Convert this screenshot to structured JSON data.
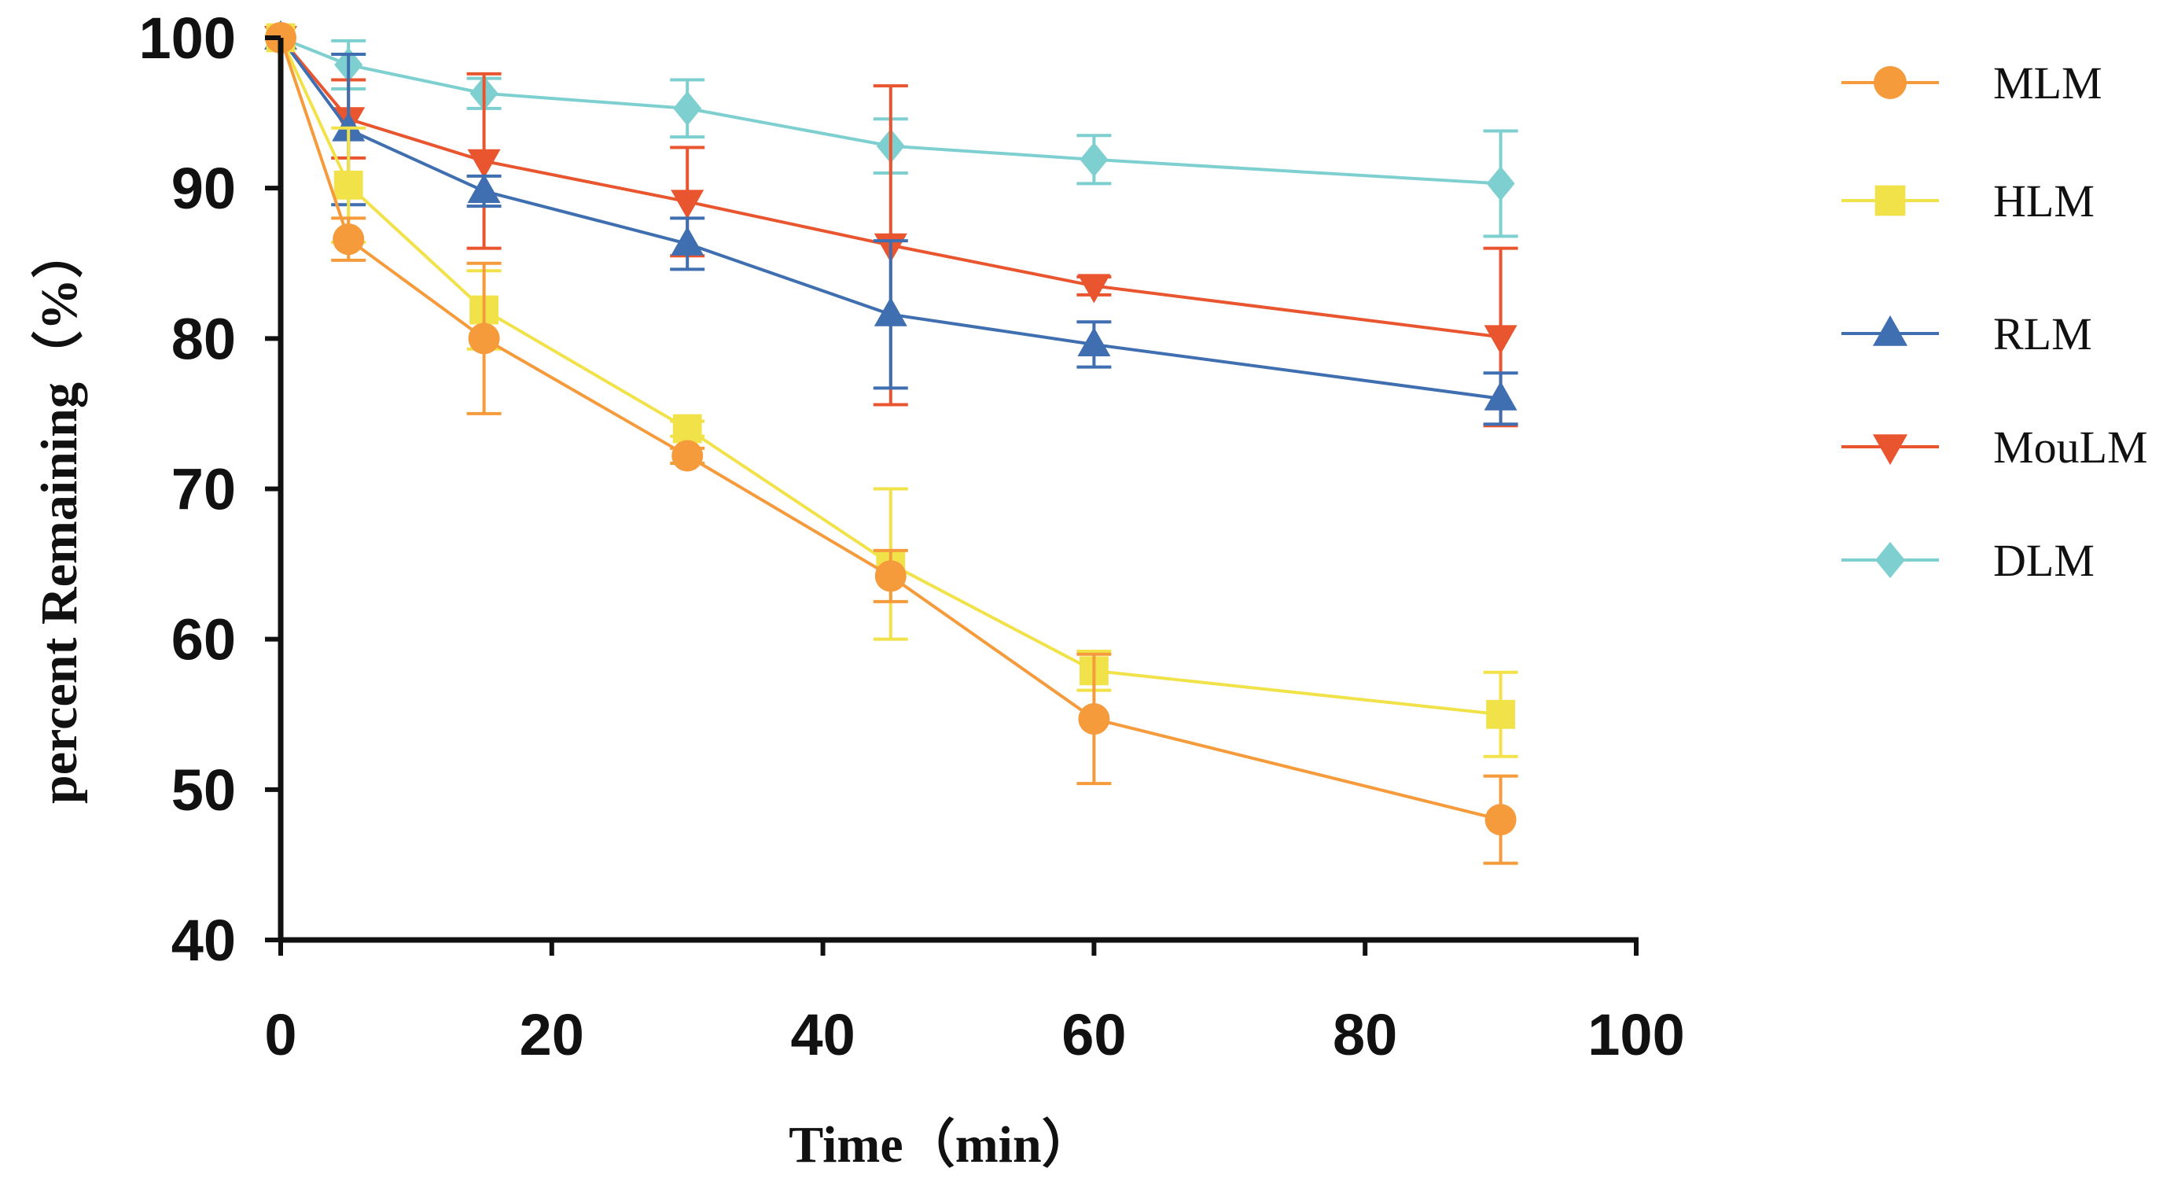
{
  "chart_data": {
    "type": "line",
    "title": "",
    "xlabel": "Time（min）",
    "ylabel": "percent Remaining（%）",
    "xlim": [
      0,
      100
    ],
    "ylim": [
      40,
      100
    ],
    "xticks": [
      0,
      20,
      40,
      60,
      80,
      100
    ],
    "yticks": [
      40,
      50,
      60,
      70,
      80,
      90,
      100
    ],
    "grid": false,
    "legend_position": "right",
    "x": [
      0,
      5,
      15,
      30,
      45,
      60,
      90
    ],
    "series": [
      {
        "name": "DLM",
        "color": "#7ecfd0",
        "marker": "diamond",
        "values": [
          100,
          98.2,
          96.3,
          95.3,
          92.8,
          91.9,
          90.3
        ],
        "errors": [
          0,
          1.6,
          1.0,
          1.9,
          1.8,
          1.6,
          3.5
        ]
      },
      {
        "name": "MouLM",
        "color": "#e8552f",
        "marker": "triangle-down",
        "values": [
          100,
          94.6,
          91.8,
          89.1,
          86.2,
          83.5,
          80.1
        ],
        "errors": [
          0,
          2.6,
          5.8,
          3.6,
          10.6,
          0.6,
          5.9
        ]
      },
      {
        "name": "RLM",
        "color": "#3f6fb0",
        "marker": "triangle-up",
        "values": [
          100,
          93.9,
          89.8,
          86.3,
          81.6,
          79.6,
          76.0
        ],
        "errors": [
          0,
          5.0,
          1.0,
          1.7,
          4.9,
          1.5,
          1.7
        ]
      },
      {
        "name": "HLM",
        "color": "#f2e24a",
        "marker": "square",
        "values": [
          100,
          90.2,
          81.9,
          74.0,
          65.0,
          57.9,
          55.0
        ],
        "errors": [
          0,
          3.8,
          2.6,
          0.5,
          5.0,
          1.3,
          2.8
        ]
      },
      {
        "name": "MLM",
        "color": "#f59b3c",
        "marker": "circle",
        "values": [
          100,
          86.6,
          80.0,
          72.2,
          64.2,
          54.7,
          48.0
        ],
        "errors": [
          0,
          1.4,
          5.0,
          0.5,
          1.7,
          4.3,
          2.9
        ]
      }
    ],
    "legend_order": [
      "MLM",
      "HLM",
      "RLM",
      "MouLM",
      "DLM"
    ]
  }
}
